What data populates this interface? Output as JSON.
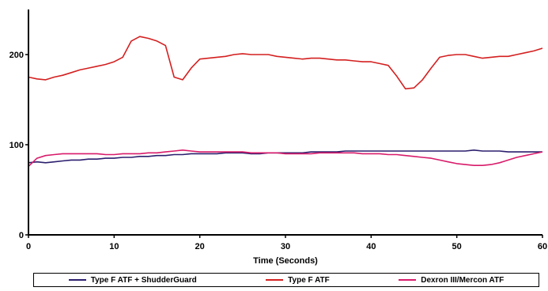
{
  "chart_data": {
    "type": "line",
    "title": "",
    "xlabel": "Time (Seconds)",
    "ylabel": "",
    "xlim": [
      0,
      60
    ],
    "ylim": [
      0,
      250
    ],
    "x_ticks": [
      "0",
      "10",
      "20",
      "30",
      "40",
      "50",
      "60"
    ],
    "y_ticks": [
      "0",
      "100",
      "200"
    ],
    "grid": false,
    "legend_position": "bottom",
    "series": [
      {
        "name": "Type F ATF + ShudderGuard",
        "color": "#2b1f6e",
        "x": [
          0,
          1,
          2,
          3,
          4,
          5,
          6,
          7,
          8,
          9,
          10,
          11,
          12,
          13,
          14,
          15,
          16,
          17,
          18,
          19,
          20,
          21,
          22,
          23,
          24,
          25,
          26,
          27,
          28,
          29,
          30,
          31,
          32,
          33,
          34,
          35,
          36,
          37,
          38,
          39,
          40,
          41,
          42,
          43,
          44,
          45,
          46,
          47,
          48,
          49,
          50,
          51,
          52,
          53,
          54,
          55,
          56,
          57,
          58,
          59,
          60
        ],
        "y": [
          80,
          81,
          80,
          81,
          82,
          83,
          83,
          84,
          84,
          85,
          85,
          86,
          86,
          87,
          87,
          88,
          88,
          89,
          89,
          90,
          90,
          90,
          90,
          91,
          91,
          91,
          90,
          90,
          91,
          91,
          91,
          91,
          91,
          92,
          92,
          92,
          92,
          93,
          93,
          93,
          93,
          93,
          93,
          93,
          93,
          93,
          93,
          93,
          93,
          93,
          93,
          93,
          94,
          93,
          93,
          93,
          92,
          92,
          92,
          92,
          92
        ]
      },
      {
        "name": "Type F ATF",
        "color": "#d42020",
        "x": [
          0,
          1,
          2,
          3,
          4,
          5,
          6,
          7,
          8,
          9,
          10,
          11,
          12,
          13,
          14,
          15,
          16,
          17,
          18,
          19,
          20,
          21,
          22,
          23,
          24,
          25,
          26,
          27,
          28,
          29,
          30,
          31,
          32,
          33,
          34,
          35,
          36,
          37,
          38,
          39,
          40,
          41,
          42,
          43,
          44,
          45,
          46,
          47,
          48,
          49,
          50,
          51,
          52,
          53,
          54,
          55,
          56,
          57,
          58,
          59,
          60
        ],
        "y": [
          175,
          173,
          172,
          175,
          177,
          180,
          183,
          185,
          187,
          189,
          192,
          197,
          215,
          220,
          218,
          215,
          210,
          175,
          172,
          185,
          195,
          196,
          197,
          198,
          200,
          201,
          200,
          200,
          200,
          198,
          197,
          196,
          195,
          196,
          196,
          195,
          194,
          194,
          193,
          192,
          192,
          190,
          188,
          176,
          162,
          163,
          172,
          185,
          197,
          199,
          200,
          200,
          198,
          196,
          197,
          198,
          198,
          200,
          202,
          204,
          207
        ]
      },
      {
        "name": "Dexron III/Mercon ATF",
        "color": "#d81b6a",
        "x": [
          0,
          1,
          2,
          3,
          4,
          5,
          6,
          7,
          8,
          9,
          10,
          11,
          12,
          13,
          14,
          15,
          16,
          17,
          18,
          19,
          20,
          21,
          22,
          23,
          24,
          25,
          26,
          27,
          28,
          29,
          30,
          31,
          32,
          33,
          34,
          35,
          36,
          37,
          38,
          39,
          40,
          41,
          42,
          43,
          44,
          45,
          46,
          47,
          48,
          49,
          50,
          51,
          52,
          53,
          54,
          55,
          56,
          57,
          58,
          59,
          60
        ],
        "y": [
          76,
          85,
          88,
          89,
          90,
          90,
          90,
          90,
          90,
          89,
          89,
          90,
          90,
          90,
          91,
          91,
          92,
          93,
          94,
          93,
          92,
          92,
          92,
          92,
          92,
          92,
          91,
          91,
          91,
          91,
          90,
          90,
          90,
          90,
          91,
          91,
          91,
          91,
          91,
          90,
          90,
          90,
          89,
          89,
          88,
          87,
          86,
          85,
          83,
          81,
          79,
          78,
          77,
          77,
          78,
          80,
          83,
          86,
          88,
          90,
          92
        ]
      }
    ]
  }
}
